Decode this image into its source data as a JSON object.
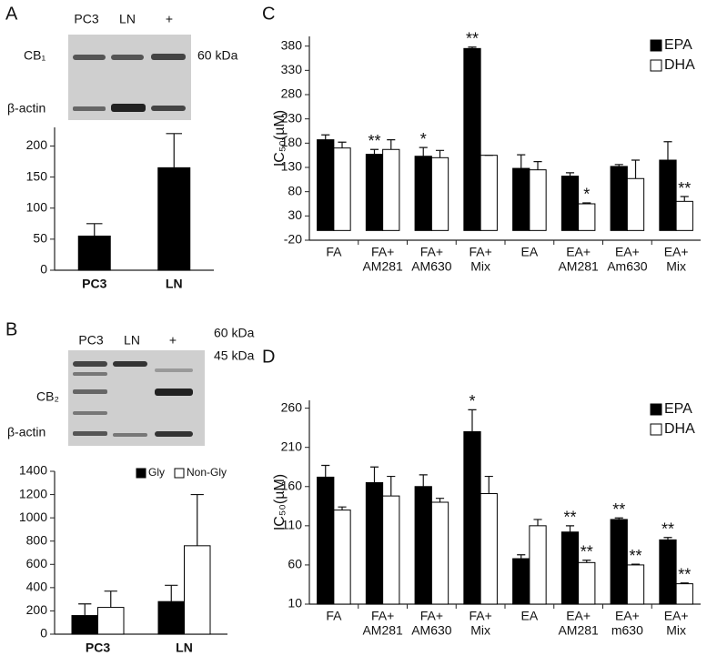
{
  "chart_data": [
    {
      "type": "bar",
      "panel": "A",
      "blot": {
        "lanes": [
          "PC3",
          "LN",
          "+"
        ],
        "bands": [
          "CB₁",
          "β-actin"
        ],
        "sizes": [
          "60 kDa"
        ]
      },
      "categories": [
        "PC3",
        "LN"
      ],
      "series": [
        {
          "color": "#000000",
          "values": [
            55,
            165
          ],
          "errors": [
            20,
            55
          ]
        }
      ],
      "ylim": [
        0,
        230
      ],
      "yticks": [
        0,
        50,
        100,
        150,
        200
      ]
    },
    {
      "type": "bar",
      "panel": "B",
      "blot": {
        "lanes": [
          "PC3",
          "LN",
          "+"
        ],
        "bands": [
          "CB₂",
          "β-actin"
        ],
        "sizes": [
          "60 kDa",
          "45 kDa"
        ]
      },
      "categories": [
        "PC3",
        "LN"
      ],
      "series": [
        {
          "name": "Gly",
          "color": "#000000",
          "values": [
            160,
            280
          ],
          "errors": [
            100,
            140
          ]
        },
        {
          "name": "Non-Gly",
          "color": "#ffffff",
          "values": [
            230,
            760
          ],
          "errors": [
            140,
            440
          ]
        }
      ],
      "legend": "top-right",
      "ylim": [
        0,
        1400
      ],
      "yticks": [
        0,
        200,
        400,
        600,
        800,
        1000,
        1200,
        1400
      ]
    },
    {
      "type": "bar",
      "panel": "C",
      "y_label": "IC₅₀(µM)",
      "categories": [
        [
          "FA"
        ],
        [
          "FA+",
          "AM281"
        ],
        [
          "FA+",
          "AM630"
        ],
        [
          "FA+",
          "Mix"
        ],
        [
          "EA"
        ],
        [
          "EA+",
          "AM281"
        ],
        [
          "EA+",
          "Am630"
        ],
        [
          "EA+",
          "Mix"
        ]
      ],
      "series": [
        {
          "name": "EPA",
          "color": "#000000",
          "values": [
            187,
            157,
            153,
            375,
            128,
            112,
            132,
            145
          ],
          "errors": [
            10,
            10,
            18,
            3,
            28,
            7,
            4,
            38
          ],
          "significance": [
            null,
            "**",
            "*",
            "**",
            null,
            null,
            null,
            null
          ]
        },
        {
          "name": "DHA",
          "color": "#ffffff",
          "values": [
            170,
            167,
            150,
            155,
            125,
            55,
            107,
            60
          ],
          "errors": [
            12,
            20,
            15,
            0,
            17,
            2,
            38,
            10
          ],
          "significance": [
            null,
            null,
            null,
            null,
            null,
            "*",
            null,
            "**"
          ]
        }
      ],
      "legend": "top-right",
      "ylim": [
        -20,
        400
      ],
      "yticks": [
        -20,
        30,
        80,
        130,
        180,
        230,
        280,
        330,
        380
      ]
    },
    {
      "type": "bar",
      "panel": "D",
      "y_label": "IC₅₀(µM)",
      "categories": [
        [
          "FA"
        ],
        [
          "FA+",
          "AM281"
        ],
        [
          "FA+",
          "AM630"
        ],
        [
          "FA+",
          "Mix"
        ],
        [
          "EA"
        ],
        [
          "EA+",
          "AM281"
        ],
        [
          "EA+",
          "m630"
        ],
        [
          "EA+",
          "Mix"
        ]
      ],
      "series": [
        {
          "name": "EPA",
          "color": "#000000",
          "values": [
            172,
            165,
            160,
            230,
            68,
            102,
            118,
            92
          ],
          "errors": [
            15,
            20,
            15,
            28,
            5,
            8,
            2,
            3
          ],
          "significance": [
            null,
            null,
            null,
            "*",
            null,
            "**",
            "**",
            "**"
          ]
        },
        {
          "name": "DHA",
          "color": "#ffffff",
          "values": [
            130,
            148,
            140,
            151,
            110,
            63,
            60,
            36
          ],
          "errors": [
            4,
            25,
            5,
            22,
            8,
            3,
            1,
            1
          ],
          "significance": [
            null,
            null,
            null,
            null,
            null,
            "**",
            "**",
            "**"
          ]
        }
      ],
      "legend": "top-right",
      "ylim": [
        10,
        270
      ],
      "yticks": [
        10,
        60,
        110,
        160,
        210,
        260
      ]
    }
  ]
}
